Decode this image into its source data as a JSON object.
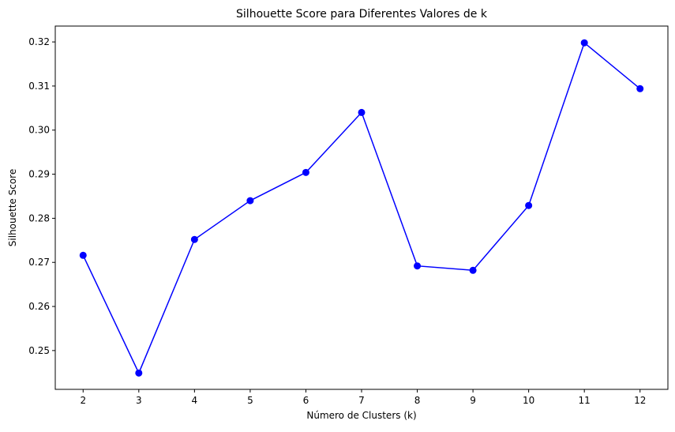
{
  "chart_data": {
    "type": "line",
    "title": "Silhouette Score para Diferentes Valores de k",
    "xlabel": "Número de Clusters (k)",
    "ylabel": "Silhouette Score",
    "x": [
      2,
      3,
      4,
      5,
      6,
      7,
      8,
      9,
      10,
      11,
      12
    ],
    "series": [
      {
        "values": [
          0.2716,
          0.2449,
          0.2752,
          0.284,
          0.2904,
          0.304,
          0.2692,
          0.2682,
          0.2829,
          0.3198,
          0.3094
        ],
        "color": "#0000ff",
        "marker": "circle"
      }
    ],
    "xticks": [
      "2",
      "3",
      "4",
      "5",
      "6",
      "7",
      "8",
      "9",
      "10",
      "11",
      "12"
    ],
    "yticks": [
      "0.25",
      "0.26",
      "0.27",
      "0.28",
      "0.29",
      "0.30",
      "0.31",
      "0.32"
    ],
    "xlim": [
      1.5,
      12.5
    ],
    "ylim": [
      0.2412,
      0.3236
    ],
    "grid": false,
    "legend": "none"
  }
}
